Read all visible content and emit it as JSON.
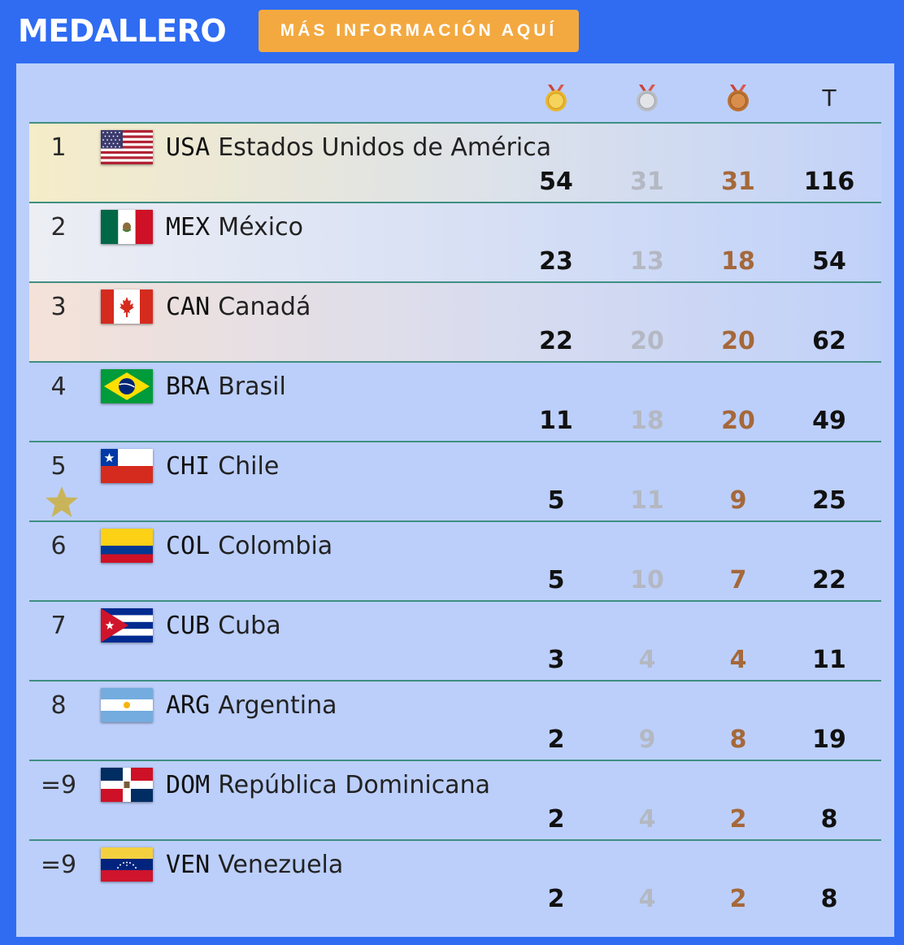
{
  "header": {
    "title": "MEDALLERO",
    "info_button": "MÁS INFORMACIÓN AQUÍ"
  },
  "columns": {
    "gold_icon": "gold-medal-icon",
    "silver_icon": "silver-medal-icon",
    "bronze_icon": "bronze-medal-icon",
    "total_label": "T"
  },
  "colors": {
    "background": "#2f6cf2",
    "panel": "#bccffb",
    "button": "#f3a940",
    "gold_text": "#111111",
    "silver_text": "#b4b8c2",
    "bronze_text": "#a5683a",
    "row_divider": "#3f8f82"
  },
  "rows": [
    {
      "rank": "1",
      "code": "USA",
      "name": "Estados Unidos de América",
      "gold": "54",
      "silver": "31",
      "bronze": "31",
      "total": "116",
      "flag": "usa-flag-icon"
    },
    {
      "rank": "2",
      "code": "MEX",
      "name": "México",
      "gold": "23",
      "silver": "13",
      "bronze": "18",
      "total": "54",
      "flag": "mexico-flag-icon"
    },
    {
      "rank": "3",
      "code": "CAN",
      "name": "Canadá",
      "gold": "22",
      "silver": "20",
      "bronze": "20",
      "total": "62",
      "flag": "canada-flag-icon"
    },
    {
      "rank": "4",
      "code": "BRA",
      "name": "Brasil",
      "gold": "11",
      "silver": "18",
      "bronze": "20",
      "total": "49",
      "flag": "brazil-flag-icon"
    },
    {
      "rank": "5",
      "code": "CHI",
      "name": "Chile",
      "gold": "5",
      "silver": "11",
      "bronze": "9",
      "total": "25",
      "flag": "chile-flag-icon",
      "star": "host-star-icon"
    },
    {
      "rank": "6",
      "code": "COL",
      "name": "Colombia",
      "gold": "5",
      "silver": "10",
      "bronze": "7",
      "total": "22",
      "flag": "colombia-flag-icon"
    },
    {
      "rank": "7",
      "code": "CUB",
      "name": "Cuba",
      "gold": "3",
      "silver": "4",
      "bronze": "4",
      "total": "11",
      "flag": "cuba-flag-icon"
    },
    {
      "rank": "8",
      "code": "ARG",
      "name": "Argentina",
      "gold": "2",
      "silver": "9",
      "bronze": "8",
      "total": "19",
      "flag": "argentina-flag-icon"
    },
    {
      "rank": "=9",
      "code": "DOM",
      "name": "República Dominicana",
      "gold": "2",
      "silver": "4",
      "bronze": "2",
      "total": "8",
      "flag": "dominican-republic-flag-icon"
    },
    {
      "rank": "=9",
      "code": "VEN",
      "name": "Venezuela",
      "gold": "2",
      "silver": "4",
      "bronze": "2",
      "total": "8",
      "flag": "venezuela-flag-icon"
    }
  ]
}
